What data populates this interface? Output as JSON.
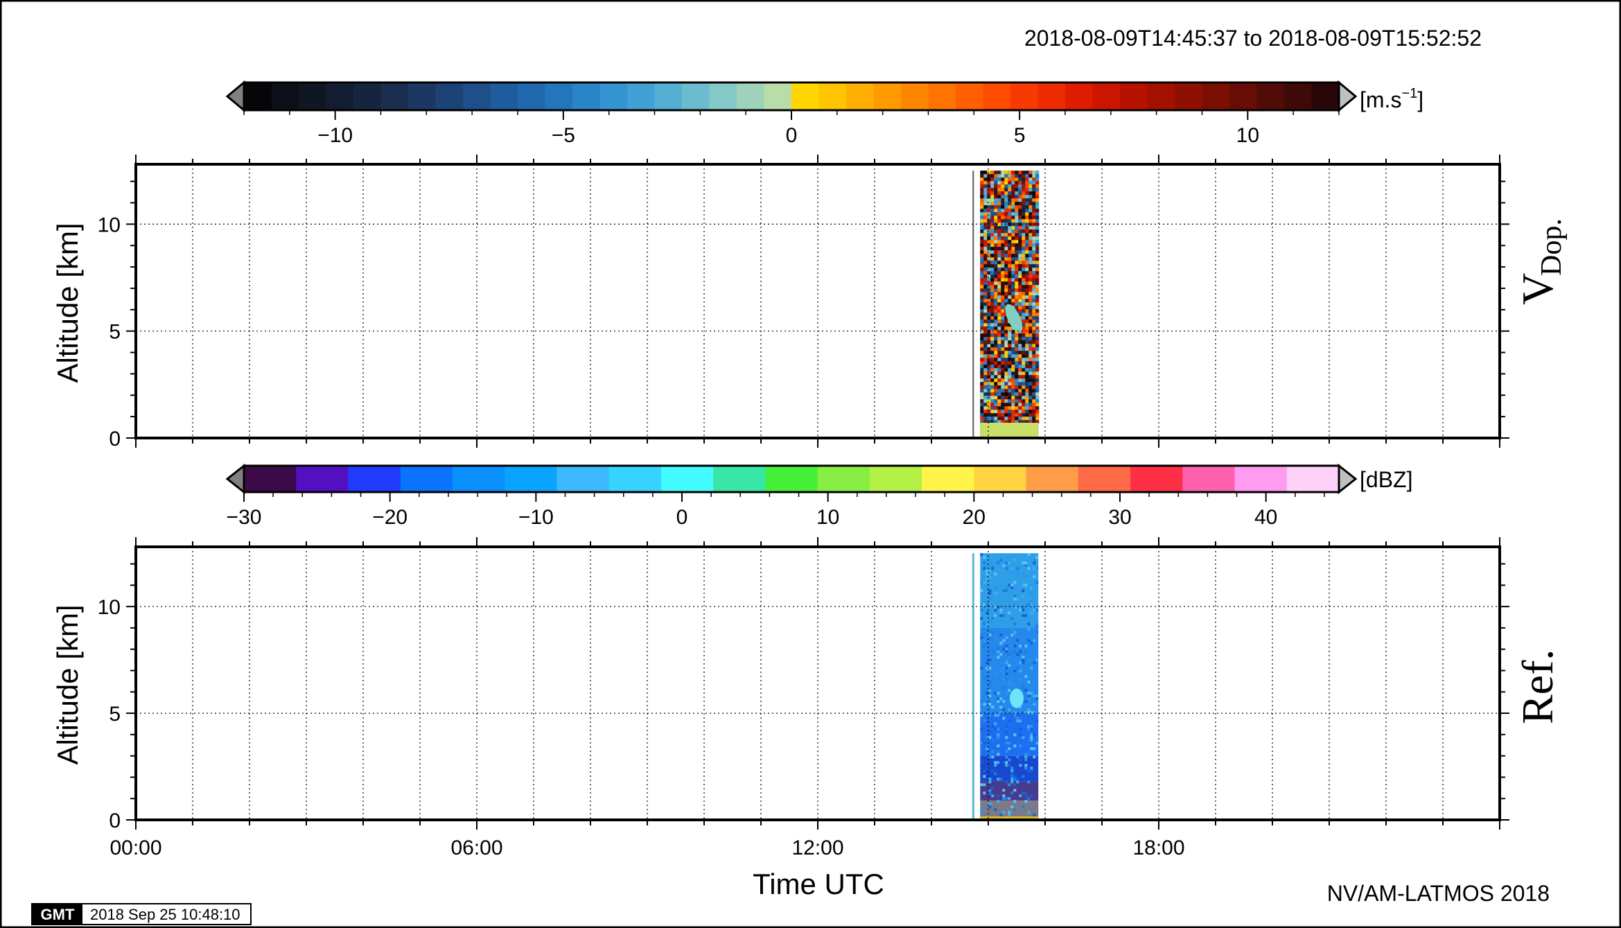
{
  "header": {
    "time_range": "2018-08-09T14:45:37 to 2018-08-09T15:52:52"
  },
  "footer": {
    "credit": "NV/AM-LATMOS 2018",
    "gmt_logo": "GMT",
    "timestamp": "2018 Sep 25 10:48:10"
  },
  "chart_data": [
    {
      "type": "heatmap",
      "panel_label": "V",
      "panel_label_sub": "Dop.",
      "ylabel": "Altitude [km]",
      "xlabel": "",
      "xlim_hours": [
        0,
        24
      ],
      "ylim": [
        0,
        12.8
      ],
      "yticks": [
        0,
        5,
        10
      ],
      "ytick_labels": [
        "0",
        "5",
        "10"
      ],
      "grid": true,
      "data_extent": {
        "t_start": "14:45:37",
        "t_end": "15:52:52",
        "note_visible_only": false
      },
      "colorbar": {
        "unit": "[m.s",
        "unit_sup": "−1",
        "unit_close": "]",
        "min": -12,
        "max": 12,
        "ticks": [
          -10,
          -5,
          0,
          5,
          10
        ],
        "tick_labels": [
          "−10",
          "−5",
          "0",
          "5",
          "10"
        ],
        "colors": [
          "#050608",
          "#0b0f17",
          "#0f1624",
          "#131d31",
          "#16253f",
          "#1a2e4f",
          "#1c3862",
          "#1d4376",
          "#1e4f8a",
          "#1f5c9d",
          "#2068ad",
          "#2376bc",
          "#2a84c8",
          "#3493d1",
          "#42a1d4",
          "#55afd3",
          "#6cbccf",
          "#85c8c8",
          "#9fd3b9",
          "#b8dda8",
          "#ffd600",
          "#ffc300",
          "#ffaf00",
          "#ff9b00",
          "#ff8700",
          "#ff7300",
          "#ff5f00",
          "#ff4b00",
          "#f93a00",
          "#ee2a00",
          "#e01c00",
          "#cc1500",
          "#b71200",
          "#a31000",
          "#8f0f00",
          "#7a0e02",
          "#660d05",
          "#520c07",
          "#3d0a08",
          "#2a0707"
        ]
      }
    },
    {
      "type": "heatmap",
      "panel_label": "Ref.",
      "ylabel": "Altitude [km]",
      "xlabel": "Time UTC",
      "xlim_hours": [
        0,
        24
      ],
      "ylim": [
        0,
        12.8
      ],
      "yticks": [
        0,
        5,
        10
      ],
      "ytick_labels": [
        "0",
        "5",
        "10"
      ],
      "xticks": [
        0,
        6,
        12,
        18
      ],
      "xtick_labels": [
        "00:00",
        "06:00",
        "12:00",
        "18:00"
      ],
      "grid": true,
      "colorbar": {
        "unit": "[dBZ]",
        "min": -30,
        "max": 45,
        "ticks": [
          -30,
          -20,
          -10,
          0,
          10,
          20,
          30,
          40
        ],
        "tick_labels": [
          "−30",
          "−20",
          "−10",
          "0",
          "10",
          "20",
          "30",
          "40"
        ],
        "colors": [
          "#3c0a48",
          "#5310c0",
          "#1f3cff",
          "#0a73ff",
          "#0a8fff",
          "#0aa3ff",
          "#3cb9ff",
          "#36d3ff",
          "#41fbfe",
          "#38e6a8",
          "#46f038",
          "#88ee44",
          "#b4f046",
          "#fff44a",
          "#ffd342",
          "#ff9c48",
          "#ff6a46",
          "#ff2f46",
          "#ff60b0",
          "#ff9cf0",
          "#ffd0f8"
        ]
      }
    }
  ]
}
